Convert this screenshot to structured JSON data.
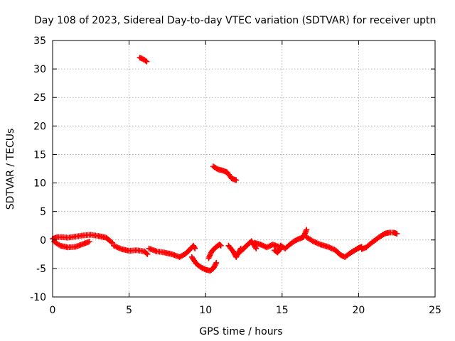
{
  "chart_data": {
    "type": "scatter",
    "title": "Day 108 of 2023, Sidereal Day-to-day VTEC variation (SDTVAR) for receiver uptn",
    "xlabel": "GPS time / hours",
    "ylabel": "SDTVAR / TECUs",
    "xlim": [
      0,
      25
    ],
    "ylim": [
      -10,
      35
    ],
    "x_ticks": [
      0,
      5,
      10,
      15,
      20,
      25
    ],
    "y_ticks": [
      -10,
      -5,
      0,
      5,
      10,
      15,
      20,
      25,
      30,
      35
    ],
    "x_tick_labels": [
      "0",
      "5",
      "10",
      "15",
      "20",
      "25"
    ],
    "y_tick_labels": [
      "-10",
      "-5",
      "0",
      "5",
      "10",
      "15",
      "20",
      "25",
      "30",
      "35"
    ],
    "grid": true,
    "marker": "+",
    "series": [
      {
        "name": "SDTVAR",
        "color": "#ff0000",
        "segments": [
          {
            "x": [
              0.0,
              0.3,
              0.6,
              1.0,
              1.5,
              2.0,
              2.5,
              3.0,
              3.5,
              3.9
            ],
            "y": [
              0.2,
              0.5,
              0.5,
              0.4,
              0.6,
              0.8,
              0.9,
              0.7,
              0.4,
              -0.5
            ]
          },
          {
            "x": [
              0.1,
              0.5,
              1.0,
              1.5,
              2.0,
              2.4
            ],
            "y": [
              -0.3,
              -1.0,
              -1.3,
              -1.2,
              -0.7,
              -0.3
            ]
          },
          {
            "x": [
              4.0,
              4.5,
              5.0,
              5.5,
              6.0,
              6.2
            ],
            "y": [
              -1.0,
              -1.6,
              -1.9,
              -1.8,
              -2.0,
              -2.5
            ]
          },
          {
            "x": [
              6.3,
              6.8,
              7.3,
              7.8,
              8.3,
              8.7,
              9.0,
              9.2,
              9.3
            ],
            "y": [
              -1.5,
              -2.0,
              -2.2,
              -2.5,
              -3.0,
              -2.4,
              -1.6,
              -1.0,
              -1.5
            ]
          },
          {
            "x": [
              9.1,
              9.4,
              9.7,
              10.0,
              10.3,
              10.5,
              10.7
            ],
            "y": [
              -3.0,
              -4.2,
              -4.8,
              -5.2,
              -5.4,
              -5.0,
              -4.0
            ]
          },
          {
            "x": [
              10.2,
              10.4,
              10.7,
              10.9,
              11.0
            ],
            "y": [
              -3.2,
              -2.0,
              -1.2,
              -0.8,
              -1.0
            ]
          },
          {
            "x": [
              11.5,
              11.8,
              12.0,
              12.3
            ],
            "y": [
              -1.0,
              -2.0,
              -3.0,
              -1.5
            ]
          },
          {
            "x": [
              12.3,
              12.6,
              13.0,
              13.3
            ],
            "y": [
              -2.0,
              -1.2,
              -0.2,
              -1.5
            ]
          },
          {
            "x": [
              13.2,
              13.6,
              14.0,
              14.4,
              14.8
            ],
            "y": [
              -0.5,
              -0.8,
              -1.3,
              -0.8,
              -1.2
            ]
          },
          {
            "x": [
              14.5,
              14.7,
              14.9
            ],
            "y": [
              -1.8,
              -2.2,
              -1.5
            ]
          },
          {
            "x": [
              14.9,
              15.2,
              15.5,
              15.8,
              16.1,
              16.4,
              16.6
            ],
            "y": [
              -1.0,
              -1.5,
              -0.8,
              -0.2,
              0.2,
              0.5,
              1.8
            ]
          },
          {
            "x": [
              16.6,
              17.0,
              17.5,
              18.0,
              18.5,
              18.8,
              19.1,
              19.4,
              19.7,
              20.0,
              20.2
            ],
            "y": [
              0.5,
              -0.2,
              -0.8,
              -1.2,
              -1.8,
              -2.6,
              -3.0,
              -2.4,
              -1.9,
              -1.4,
              -1.2
            ]
          },
          {
            "x": [
              20.2,
              20.5,
              20.8,
              21.1,
              21.4,
              21.7,
              22.0,
              22.3,
              22.5
            ],
            "y": [
              -1.6,
              -1.3,
              -0.6,
              0.0,
              0.6,
              1.1,
              1.3,
              1.3,
              1.1
            ]
          },
          {
            "x": [
              5.7,
              5.85,
              6.0,
              6.15
            ],
            "y": [
              32.0,
              31.8,
              31.6,
              31.3
            ]
          },
          {
            "x": [
              10.5,
              10.8,
              11.1,
              11.4,
              11.7,
              12.0
            ],
            "y": [
              12.9,
              12.4,
              12.2,
              11.9,
              10.8,
              10.5
            ]
          }
        ]
      }
    ]
  }
}
